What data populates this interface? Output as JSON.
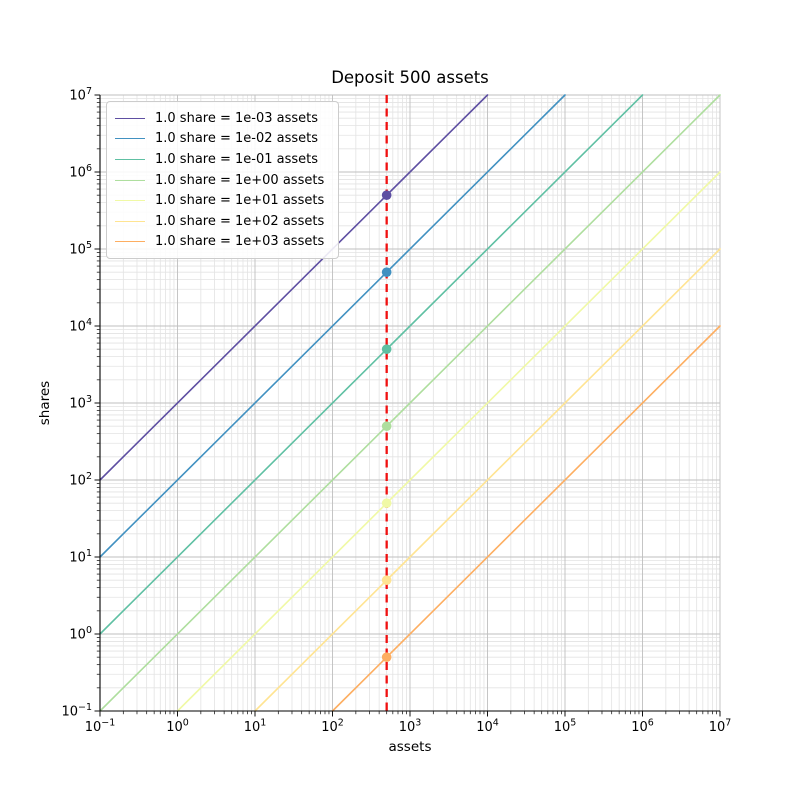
{
  "chart_data": {
    "type": "line",
    "title": "Deposit 500 assets",
    "xlabel": "assets",
    "ylabel": "shares",
    "xscale": "log",
    "yscale": "log",
    "xlim": [
      0.1,
      10000000
    ],
    "ylim": [
      0.1,
      10000000
    ],
    "x_tick_exponents": [
      -1,
      0,
      1,
      2,
      3,
      4,
      5,
      6,
      7
    ],
    "y_tick_exponents": [
      -1,
      0,
      1,
      2,
      3,
      4,
      5,
      6,
      7
    ],
    "grid": "both",
    "legend_position": "upper left",
    "deposit_line": {
      "x": 500,
      "color": "#f01010",
      "style": "dashed"
    },
    "series": [
      {
        "label": "1.0 share = 1e-03 assets",
        "assets_per_share": 0.001,
        "color": "#5e4fa2",
        "dot": {
          "x": 500,
          "y": 500000
        }
      },
      {
        "label": "1.0 share = 1e-02 assets",
        "assets_per_share": 0.01,
        "color": "#4191c1",
        "dot": {
          "x": 500,
          "y": 50000
        }
      },
      {
        "label": "1.0 share = 1e-01 assets",
        "assets_per_share": 0.1,
        "color": "#5fc0a3",
        "dot": {
          "x": 500,
          "y": 5000
        }
      },
      {
        "label": "1.0 share = 1e+00 assets",
        "assets_per_share": 1,
        "color": "#aede9e",
        "dot": {
          "x": 500,
          "y": 500
        }
      },
      {
        "label": "1.0 share = 1e+01 assets",
        "assets_per_share": 10,
        "color": "#f0f9a5",
        "dot": {
          "x": 500,
          "y": 50
        }
      },
      {
        "label": "1.0 share = 1e+02 assets",
        "assets_per_share": 100,
        "color": "#ffe492",
        "dot": {
          "x": 500,
          "y": 5
        }
      },
      {
        "label": "1.0 share = 1e+03 assets",
        "assets_per_share": 1000,
        "color": "#fdae61",
        "dot": {
          "x": 500,
          "y": 0.5
        }
      }
    ],
    "colors": {
      "grid_major": "#bfbfbf",
      "grid_minor": "#e3e3e3",
      "spine": "#000000",
      "deposit_line": "#f01010"
    }
  }
}
